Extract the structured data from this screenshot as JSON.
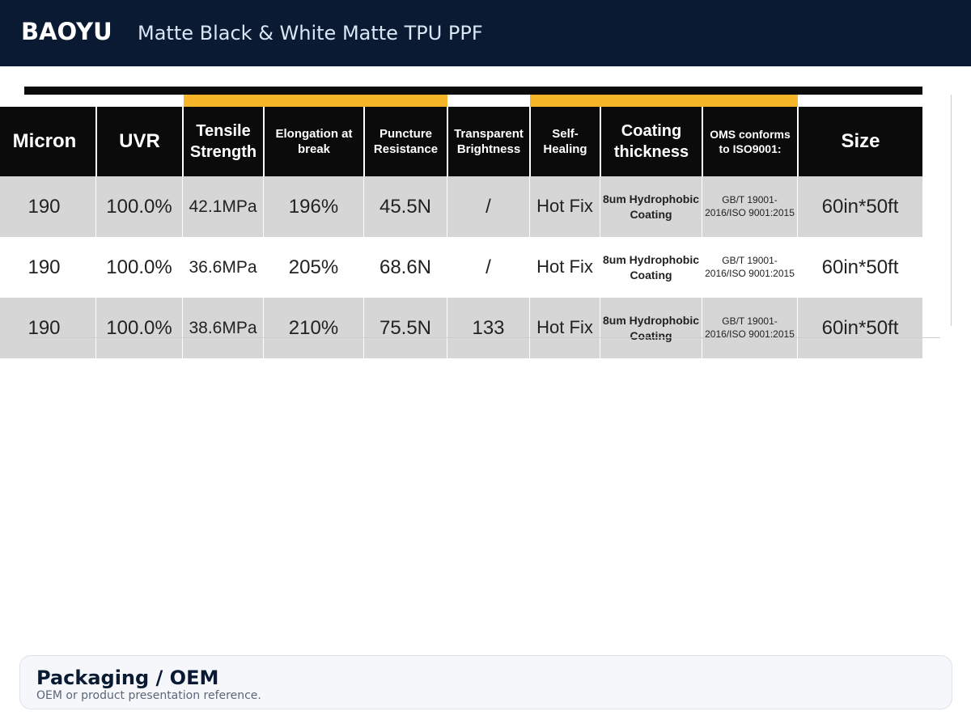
{
  "header": {
    "brand": "BAOYU",
    "title": "Matte Black & White Matte TPU PPF"
  },
  "table": {
    "headers": [
      "Micron",
      "UVR",
      "Tensile Strength",
      "Elongation at break",
      "Puncture Resistance",
      "Transparent Brightness",
      "Self-Healing",
      "Coating thickness",
      "OMS conforms to ISO9001:",
      "Size"
    ],
    "rows": [
      [
        "190",
        "100.0%",
        "42.1MPa",
        "196%",
        "45.5N",
        "/",
        "Hot Fix",
        "8um Hydrophobic Coating",
        "GB/T 19001-2016/ISO 9001:2015",
        "60in*50ft"
      ],
      [
        "190",
        "100.0%",
        "36.6MPa",
        "205%",
        "68.6N",
        "/",
        "Hot Fix",
        "8um Hydrophobic Coating",
        "GB/T 19001-2016/ISO 9001:2015",
        "60in*50ft"
      ],
      [
        "190",
        "100.0%",
        "38.6MPa",
        "210%",
        "75.5N",
        "133",
        "Hot Fix",
        "8um Hydrophobic Coating",
        "GB/T 19001-2016/ISO 9001:2015",
        "60in*50ft"
      ]
    ]
  },
  "footer": {
    "title": "Packaging / OEM",
    "subtitle": "OEM or product presentation reference."
  }
}
